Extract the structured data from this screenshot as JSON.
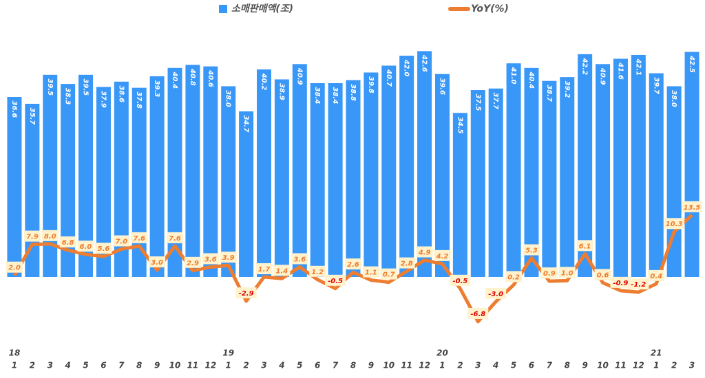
{
  "chart_data": {
    "type": "bar_line",
    "categories": [
      "1",
      "2",
      "3",
      "4",
      "5",
      "6",
      "7",
      "8",
      "9",
      "10",
      "11",
      "12",
      "1",
      "2",
      "3",
      "4",
      "5",
      "6",
      "7",
      "8",
      "9",
      "10",
      "11",
      "12",
      "1",
      "2",
      "3",
      "4",
      "5",
      "6",
      "7",
      "8",
      "9",
      "10",
      "11",
      "12",
      "1",
      "2",
      "3"
    ],
    "year_labels": [
      "18",
      null,
      null,
      null,
      null,
      null,
      null,
      null,
      null,
      null,
      null,
      null,
      "19",
      null,
      null,
      null,
      null,
      null,
      null,
      null,
      null,
      null,
      null,
      null,
      "20",
      null,
      null,
      null,
      null,
      null,
      null,
      null,
      null,
      null,
      null,
      null,
      "21",
      null,
      null
    ],
    "series": [
      {
        "name": "소매판매액(조)",
        "type": "bar",
        "color": "#3897f7",
        "values": [
          36.6,
          35.7,
          39.5,
          38.3,
          39.5,
          37.9,
          38.6,
          37.8,
          39.3,
          40.4,
          40.8,
          40.6,
          38.0,
          34.7,
          40.2,
          38.9,
          40.9,
          38.4,
          38.4,
          38.8,
          39.8,
          40.7,
          42.0,
          42.6,
          39.6,
          34.5,
          37.5,
          37.7,
          41.0,
          40.4,
          38.7,
          39.2,
          42.2,
          40.9,
          41.6,
          42.1,
          39.7,
          38.0,
          42.5
        ],
        "value_labels": [
          "36.6",
          "35.7",
          "39.5",
          "38.3",
          "39.5",
          "37.9",
          "38.6",
          "37.8",
          "39.3",
          "40.4",
          "40.8",
          "40.6",
          "38.0",
          "34.7",
          "40.2",
          "38.9",
          "40.9",
          "38.4",
          "38.4",
          "38.8",
          "39.8",
          "40.7",
          "42.0",
          "42.6",
          "39.6",
          "34.5",
          "37.5",
          "37.7",
          "41.0",
          "40.4",
          "38.7",
          "39.2",
          "42.2",
          "40.9",
          "41.6",
          "42.1",
          "39.7",
          "38.0",
          "42.5"
        ]
      },
      {
        "name": "YoY(%)",
        "type": "line",
        "axis": "y2",
        "color": "#ed7d31",
        "negative_label_color": "#e00000",
        "label_background": "#fff2cc",
        "values": [
          2.0,
          7.9,
          8.0,
          6.8,
          6.0,
          5.6,
          7.0,
          7.6,
          3.0,
          7.6,
          2.9,
          3.6,
          3.9,
          -2.9,
          1.7,
          1.4,
          3.6,
          1.2,
          -0.5,
          2.6,
          1.1,
          0.7,
          2.8,
          4.9,
          4.2,
          -0.5,
          -6.8,
          -3.0,
          0.2,
          5.3,
          0.9,
          1.0,
          6.1,
          0.6,
          -0.9,
          -1.2,
          0.4,
          10.3,
          13.5
        ],
        "value_labels": [
          "2.0",
          "7.9",
          "8.0",
          "6.8",
          "6.0",
          "5.6",
          "7.0",
          "7.6",
          "3.0",
          "7.6",
          "2.9",
          "3.6",
          "3.9",
          "-2.9",
          "1.7",
          "1.4",
          "3.6",
          "1.2",
          "-0.5",
          "2.6",
          "1.1",
          "0.7",
          "2.8",
          "4.9",
          "4.2",
          "-0.5",
          "-6.8",
          "-3.0",
          "0.2",
          "5.3",
          "0.9",
          "1.0",
          "6.1",
          "0.6",
          "-0.9",
          "-1.2",
          "0.4",
          "10.3",
          "13.5"
        ]
      }
    ],
    "ylim": [
      13,
      47.5
    ],
    "y2lim": [
      -12.3,
      51.8
    ]
  }
}
